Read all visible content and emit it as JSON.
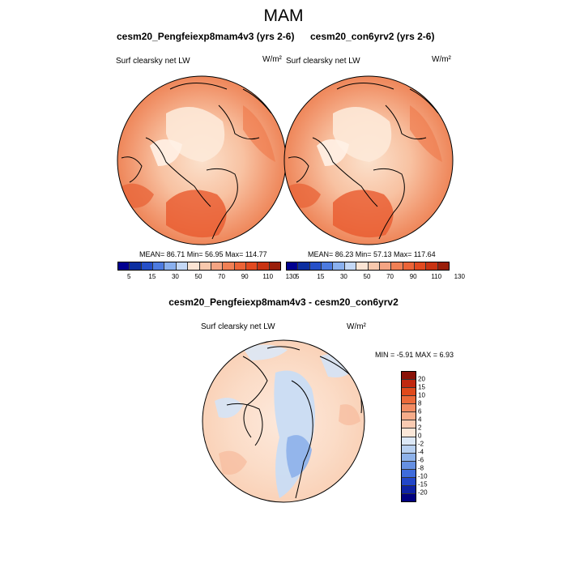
{
  "figure": {
    "title": "MAM"
  },
  "panels": [
    {
      "title": "cesm20_Pengfeiexp8mam4v3 (yrs 2-6)",
      "variable": "Surf clearsky net LW",
      "units": "W/m²",
      "stats": "MEAN=  86.71  Min=  56.95  Max= 114.77"
    },
    {
      "title": "cesm20_con6yrv2 (yrs 2-6)",
      "variable": "Surf clearsky net LW",
      "units": "W/m²",
      "stats": "MEAN=  86.23  Min=  57.13  Max= 117.64"
    }
  ],
  "difference": {
    "title": "cesm20_Pengfeiexp8mam4v3 - cesm20_con6yrv2",
    "variable": "Surf clearsky net LW",
    "units": "W/m²",
    "stats": "MIN =  -5.91 MAX =   6.93"
  },
  "colorbar_top": {
    "tick_labels": [
      "5",
      "15",
      "30",
      "50",
      "70",
      "90",
      "110",
      "130"
    ],
    "colors": [
      "#000090",
      "#0b2ea0",
      "#2650c8",
      "#4d7be0",
      "#8ab0ee",
      "#c4d8f6",
      "#fbe4d4",
      "#f8c8ad",
      "#f4a483",
      "#f08055",
      "#ec6437",
      "#e24a20",
      "#c93312",
      "#9a1e0a"
    ]
  },
  "colorbar_diff": {
    "tick_labels": [
      "20",
      "15",
      "10",
      "8",
      "6",
      "4",
      "2",
      "0",
      "-2",
      "-4",
      "-6",
      "-8",
      "-10",
      "-15",
      "-20"
    ],
    "colors": [
      "#8a1208",
      "#c02810",
      "#e04a1c",
      "#ec6a3a",
      "#f28b62",
      "#f6ac8a",
      "#f9cbb2",
      "#fbe7d8",
      "#dce8f6",
      "#b8d0f0",
      "#8eb2ea",
      "#6690e2",
      "#3f6cdc",
      "#2246c8",
      "#0e22a4",
      "#000080"
    ]
  }
}
